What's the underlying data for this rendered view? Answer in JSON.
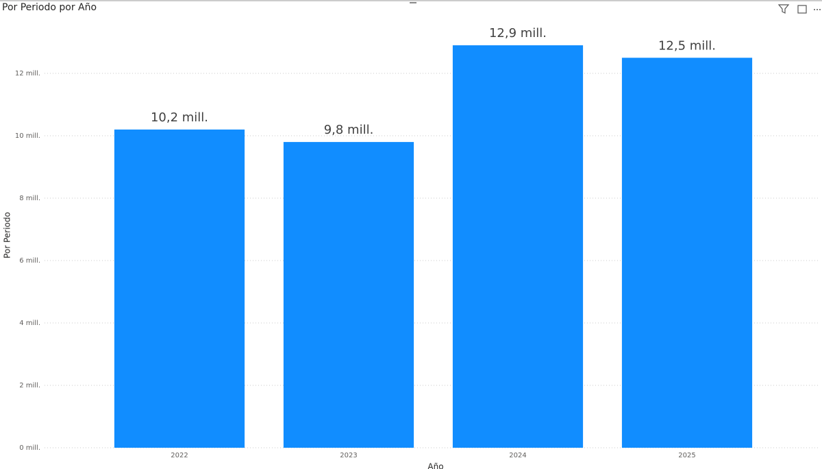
{
  "chart_data": {
    "type": "bar",
    "title": "Por Periodo por Año",
    "x_label": "Año",
    "y_label": "Por Periodo",
    "categories": [
      "2022",
      "2023",
      "2024",
      "2025"
    ],
    "values": [
      10200000,
      9800000,
      12900000,
      12500000
    ],
    "value_labels": [
      "10,2 mill.",
      "9,8 mill.",
      "12,9 mill.",
      "12,5 mill."
    ],
    "color": "#118dff",
    "ylim": [
      0,
      14000000
    ],
    "yticks": [
      {
        "value": 0,
        "label": "0 mill."
      },
      {
        "value": 2000000,
        "label": "2 mill."
      },
      {
        "value": 4000000,
        "label": "4 mill."
      },
      {
        "value": 6000000,
        "label": "6 mill."
      },
      {
        "value": 8000000,
        "label": "8 mill."
      },
      {
        "value": 10000000,
        "label": "10 mill."
      },
      {
        "value": 12000000,
        "label": "12 mill."
      }
    ],
    "grid": true
  }
}
